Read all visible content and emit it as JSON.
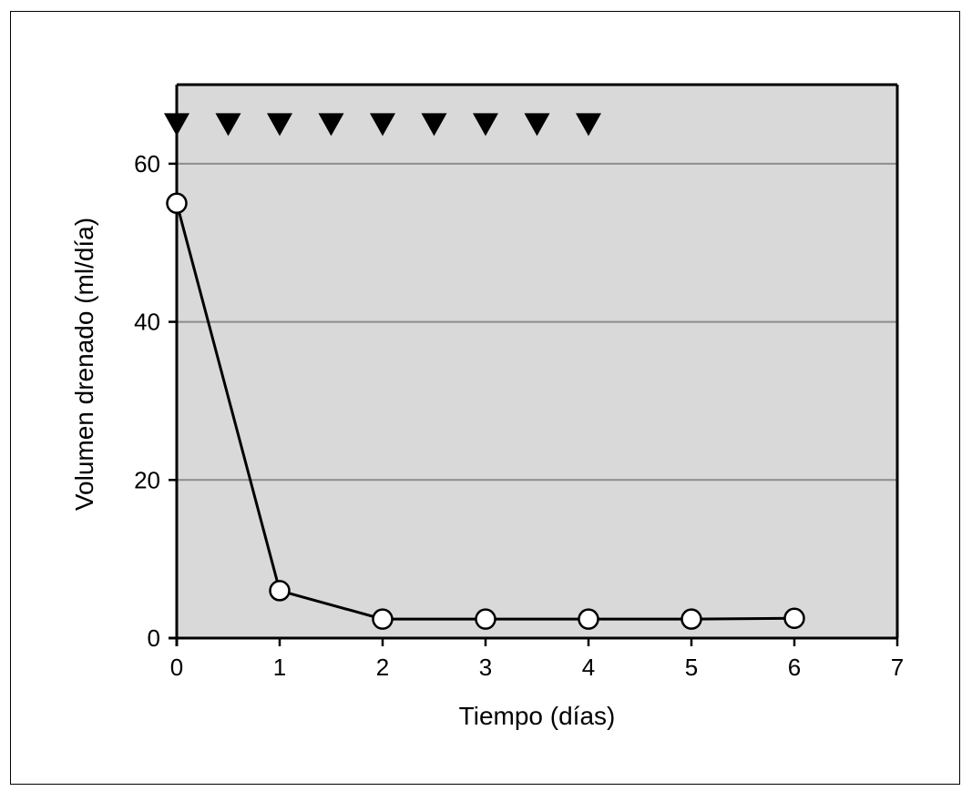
{
  "chart_data": {
    "type": "line",
    "title": "",
    "xlabel": "Tiempo (días)",
    "ylabel": "Volumen drenado (ml/día)",
    "xlim": [
      0,
      7
    ],
    "ylim": [
      0,
      70
    ],
    "x_ticks": [
      0,
      1,
      2,
      3,
      4,
      5,
      6,
      7
    ],
    "y_ticks": [
      0,
      20,
      40,
      60
    ],
    "grid": "horizontal",
    "colors": {
      "plot_background": "#d9d9d9",
      "gridline": "#8c8c8c",
      "line": "#000000",
      "marker_fill": "#ffffff",
      "triangle": "#000000"
    },
    "series": [
      {
        "marker": "open-circle",
        "x": [
          0,
          1,
          2,
          3,
          4,
          5,
          6
        ],
        "y": [
          55,
          6,
          2.4,
          2.4,
          2.4,
          2.4,
          2.5
        ]
      }
    ],
    "triangle_markers": {
      "marker": "filled-down-triangle",
      "x": [
        0,
        0.5,
        1,
        1.5,
        2,
        2.5,
        3,
        3.5,
        4
      ],
      "y": [
        65,
        65,
        65,
        65,
        65,
        65,
        65,
        65,
        65
      ]
    }
  }
}
